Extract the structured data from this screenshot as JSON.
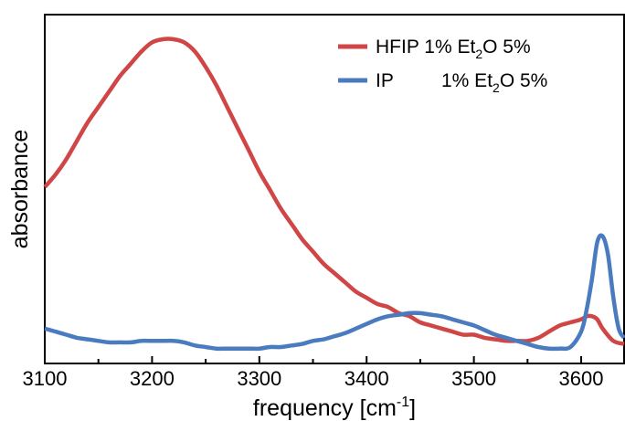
{
  "chart_data": {
    "type": "line",
    "xlabel": "frequency [cm",
    "xlabel_sup": "-1",
    "xlabel_close": "]",
    "ylabel": "absorbance",
    "xlim": [
      3100,
      3640
    ],
    "ylim": [
      0,
      1
    ],
    "xticks": [
      3100,
      3200,
      3300,
      3400,
      3500,
      3600
    ],
    "legend_position": "top-right",
    "grid": false,
    "y_tick_labels": false,
    "series": [
      {
        "name": "HFIP 1% Et",
        "name_sub": "2",
        "name_rest": "O 5%",
        "color": "#d04646",
        "x": [
          3100,
          3110,
          3120,
          3130,
          3140,
          3150,
          3160,
          3170,
          3180,
          3190,
          3200,
          3210,
          3220,
          3230,
          3240,
          3250,
          3260,
          3270,
          3280,
          3290,
          3300,
          3310,
          3320,
          3330,
          3340,
          3350,
          3360,
          3370,
          3380,
          3390,
          3400,
          3410,
          3420,
          3430,
          3440,
          3450,
          3460,
          3470,
          3480,
          3490,
          3500,
          3510,
          3520,
          3530,
          3540,
          3550,
          3560,
          3570,
          3580,
          3590,
          3600,
          3605,
          3610,
          3615,
          3620,
          3630,
          3640
        ],
        "y": [
          0.52,
          0.56,
          0.61,
          0.67,
          0.73,
          0.78,
          0.83,
          0.88,
          0.92,
          0.96,
          0.99,
          1.0,
          1.0,
          0.99,
          0.96,
          0.91,
          0.85,
          0.78,
          0.71,
          0.64,
          0.57,
          0.51,
          0.45,
          0.4,
          0.35,
          0.31,
          0.27,
          0.24,
          0.21,
          0.18,
          0.16,
          0.14,
          0.13,
          0.11,
          0.1,
          0.08,
          0.07,
          0.06,
          0.05,
          0.04,
          0.04,
          0.03,
          0.025,
          0.02,
          0.02,
          0.02,
          0.03,
          0.05,
          0.07,
          0.08,
          0.09,
          0.1,
          0.1,
          0.09,
          0.06,
          0.02,
          0.01
        ]
      },
      {
        "name": "IP",
        "name_pad": "1% Et",
        "name_sub": "2",
        "name_rest": "O 5%",
        "color": "#4a7bbf",
        "x": [
          3100,
          3110,
          3120,
          3130,
          3140,
          3150,
          3160,
          3170,
          3180,
          3190,
          3200,
          3210,
          3220,
          3230,
          3240,
          3250,
          3260,
          3270,
          3280,
          3290,
          3300,
          3310,
          3320,
          3330,
          3340,
          3350,
          3360,
          3370,
          3380,
          3390,
          3400,
          3410,
          3420,
          3430,
          3440,
          3450,
          3460,
          3470,
          3480,
          3490,
          3500,
          3510,
          3520,
          3530,
          3540,
          3550,
          3560,
          3570,
          3580,
          3590,
          3600,
          3605,
          3610,
          3615,
          3620,
          3625,
          3630,
          3635,
          3640
        ],
        "y": [
          0.06,
          0.05,
          0.04,
          0.03,
          0.025,
          0.02,
          0.015,
          0.015,
          0.015,
          0.02,
          0.02,
          0.02,
          0.02,
          0.015,
          0.005,
          0.0,
          -0.005,
          -0.005,
          -0.005,
          -0.005,
          -0.005,
          0.0,
          0.0,
          0.005,
          0.01,
          0.02,
          0.025,
          0.035,
          0.045,
          0.06,
          0.075,
          0.09,
          0.1,
          0.105,
          0.11,
          0.11,
          0.105,
          0.1,
          0.09,
          0.08,
          0.07,
          0.055,
          0.04,
          0.03,
          0.02,
          0.01,
          0.0,
          -0.005,
          -0.005,
          0.0,
          0.05,
          0.12,
          0.22,
          0.34,
          0.36,
          0.3,
          0.16,
          0.06,
          0.03
        ]
      }
    ]
  }
}
